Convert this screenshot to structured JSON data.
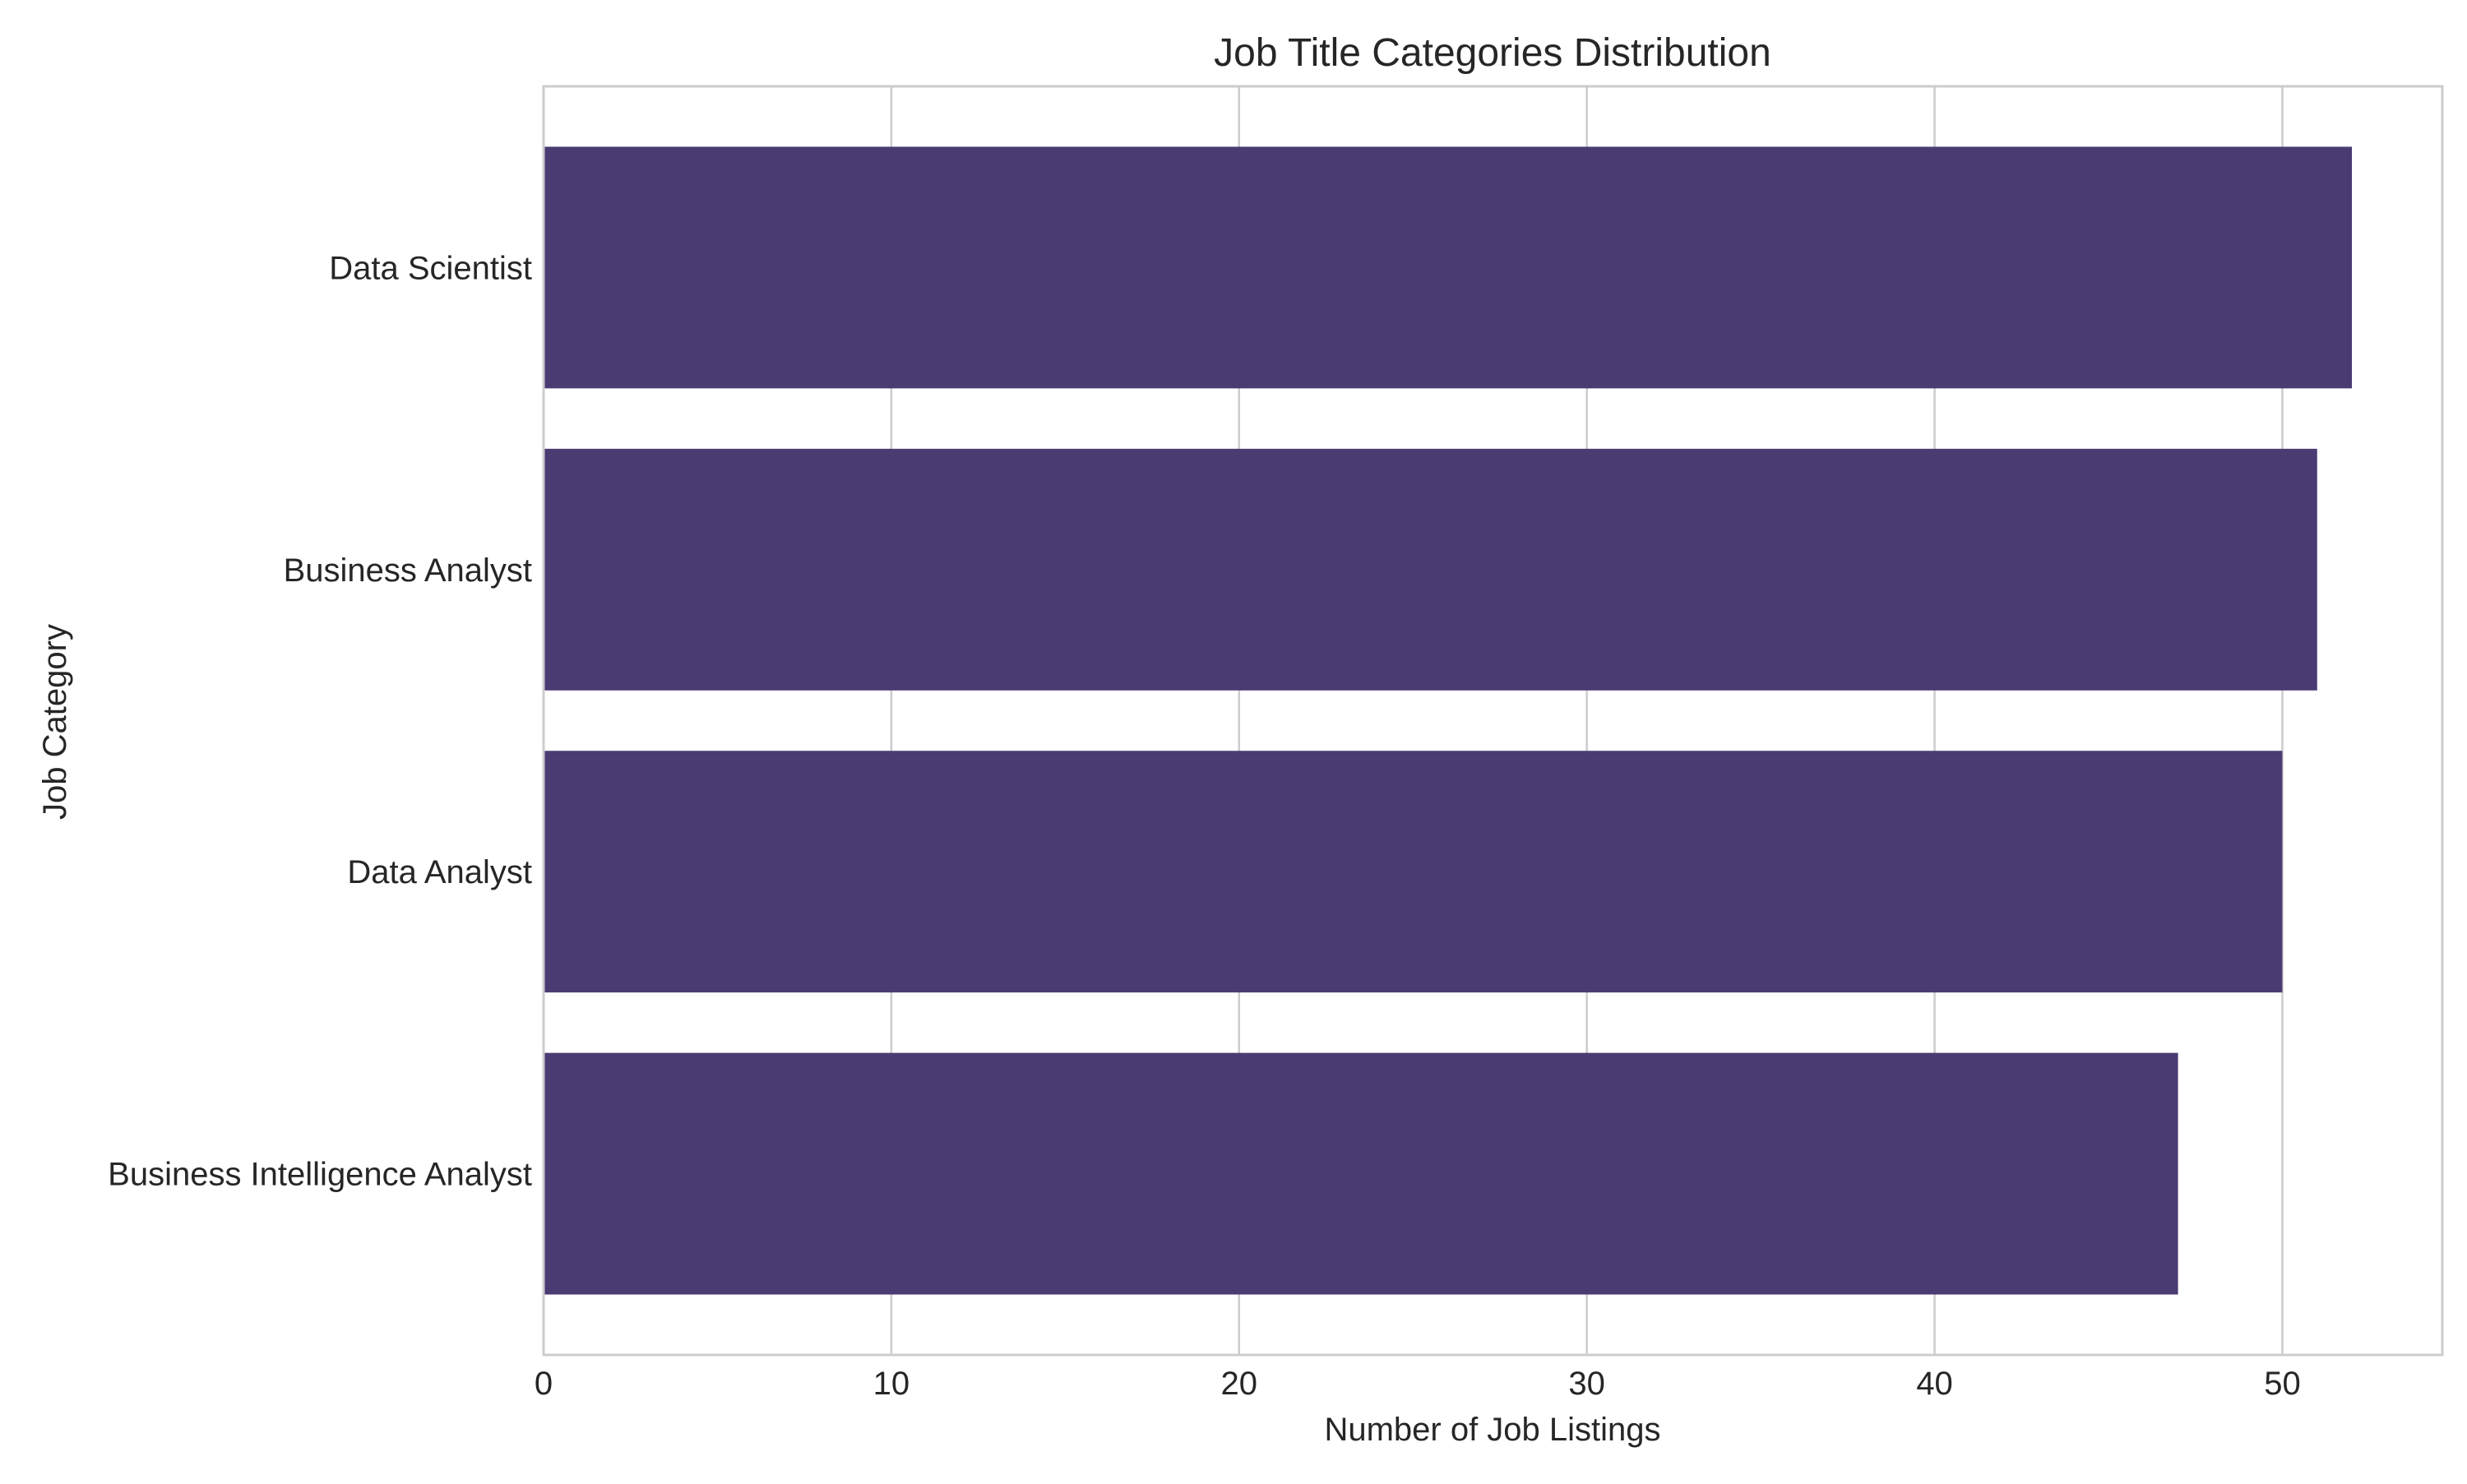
{
  "chart_data": {
    "type": "bar",
    "orientation": "horizontal",
    "title": "Job Title Categories Distribution",
    "xlabel": "Number of Job Listings",
    "ylabel": "Job Category",
    "categories": [
      "Data Scientist",
      "Business Analyst",
      "Data Analyst",
      "Business Intelligence Analyst"
    ],
    "values": [
      52,
      51,
      50,
      47
    ],
    "xlim": [
      0,
      54.6
    ],
    "xticks": [
      0,
      10,
      20,
      30,
      40,
      50
    ],
    "xtick_labels": [
      "0",
      "10",
      "20",
      "30",
      "40",
      "50"
    ],
    "grid": true,
    "colors": {
      "bar": "#4a3b73",
      "grid": "#cccccc",
      "frame": "#cccccc",
      "text": "#262626"
    }
  }
}
